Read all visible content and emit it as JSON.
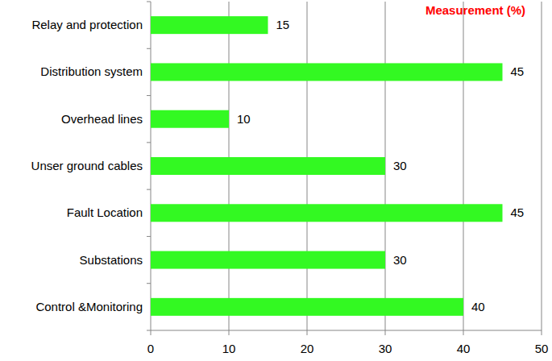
{
  "chart_data": {
    "type": "bar",
    "title": "Measurement (%)",
    "orientation": "horizontal",
    "categories": [
      "Relay and protection",
      "Distribution system",
      "Overhead lines",
      "Unser ground cables",
      "Fault Location",
      "Substations",
      "Control &Monitoring"
    ],
    "values": [
      15,
      45,
      10,
      30,
      45,
      30,
      40
    ],
    "color": "#33f922",
    "xlim": [
      0,
      50
    ],
    "xticks": [
      0,
      10,
      20,
      30,
      40,
      50
    ],
    "grid": true,
    "data_labels": true
  }
}
